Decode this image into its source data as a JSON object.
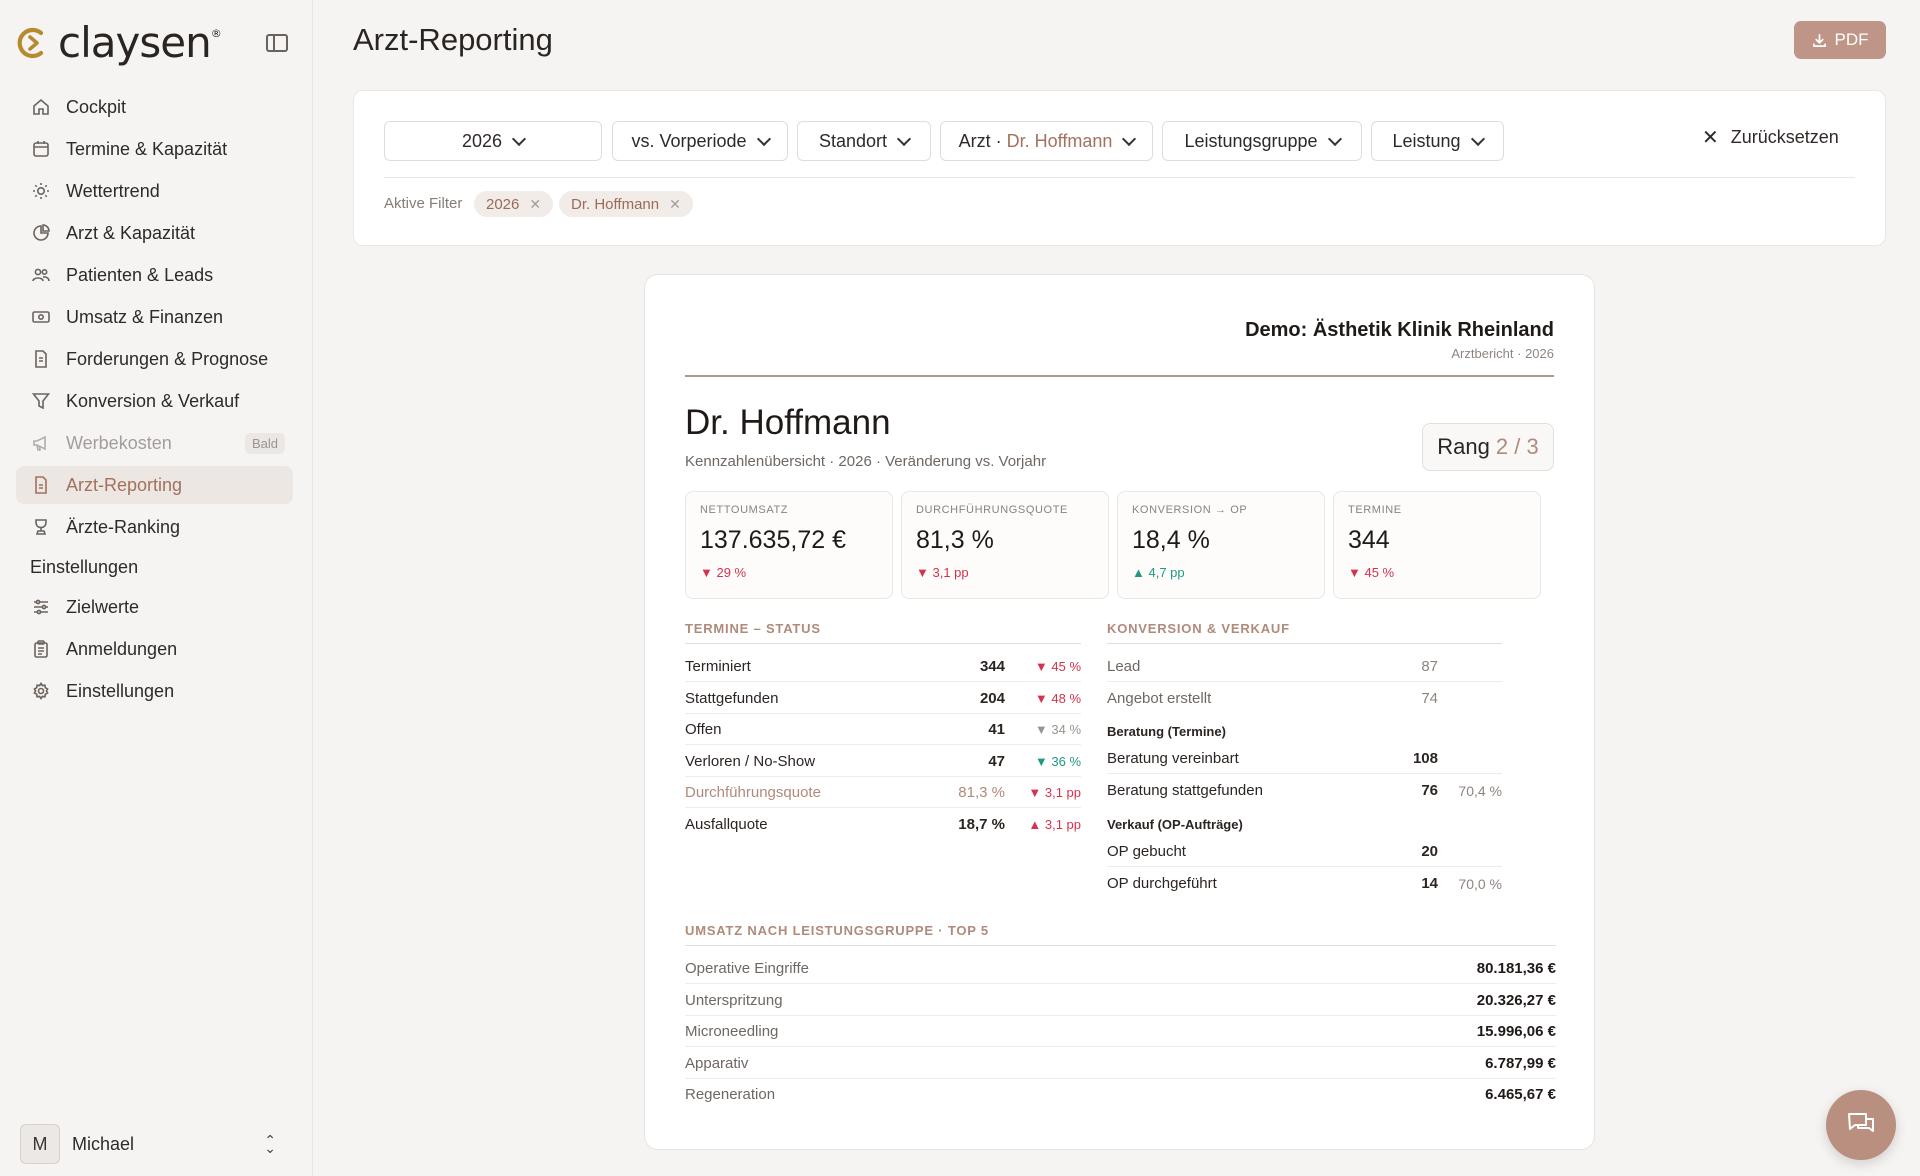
{
  "brand": {
    "name": "claysen",
    "mark": "®"
  },
  "sidebar": {
    "items": [
      {
        "label": "Cockpit",
        "icon": "home-icon"
      },
      {
        "label": "Termine & Kapazität",
        "icon": "calendar-icon"
      },
      {
        "label": "Wettertrend",
        "icon": "sun-icon"
      },
      {
        "label": "Arzt & Kapazität",
        "icon": "pie-chart-icon"
      },
      {
        "label": "Patienten & Leads",
        "icon": "users-icon"
      },
      {
        "label": "Umsatz & Finanzen",
        "icon": "banknote-icon"
      },
      {
        "label": "Forderungen & Prognose",
        "icon": "receipt-icon"
      },
      {
        "label": "Konversion & Verkauf",
        "icon": "funnel-icon"
      },
      {
        "label": "Werbekosten",
        "icon": "megaphone-icon",
        "badge": "Bald"
      },
      {
        "label": "Arzt-Reporting",
        "icon": "document-icon"
      },
      {
        "label": "Ärzte-Ranking",
        "icon": "trophy-icon"
      }
    ],
    "section": "Einstellungen",
    "settings_items": [
      {
        "label": "Zielwerte",
        "icon": "sliders-icon"
      },
      {
        "label": "Anmeldungen",
        "icon": "clipboard-icon"
      },
      {
        "label": "Einstellungen",
        "icon": "gear-icon"
      }
    ],
    "user": {
      "initial": "M",
      "name": "Michael"
    }
  },
  "header": {
    "title": "Arzt-Reporting",
    "pdf_label": "PDF"
  },
  "filters": {
    "year": "2026",
    "compare": "vs. Vorperiode",
    "location": "Standort",
    "doctor_prefix": "Arzt ·",
    "doctor_value": "Dr. Hoffmann",
    "service_group": "Leistungsgruppe",
    "service": "Leistung",
    "reset": "Zurücksetzen",
    "active_label": "Aktive Filter",
    "chips": [
      "2026",
      "Dr. Hoffmann"
    ]
  },
  "report": {
    "clinic": "Demo: Ästhetik Klinik Rheinland",
    "clinic_sub": "Arztbericht · 2026",
    "doctor": "Dr. Hoffmann",
    "doctor_sub": "Kennzahlenübersicht · 2026 · Veränderung vs. Vorjahr",
    "rank_label": "Rang",
    "rank_value": "2 / 3",
    "kpis": [
      {
        "label": "NETTOUMSATZ",
        "value": "137.635,72 €",
        "delta": "▼ 29 %",
        "dir": "down"
      },
      {
        "label": "DURCHFÜHRUNGSQUOTE",
        "value": "81,3 %",
        "delta": "▼ 3,1 pp",
        "dir": "down"
      },
      {
        "label": "KONVERSION → OP",
        "value": "18,4 %",
        "delta": "▲ 4,7 pp",
        "dir": "up"
      },
      {
        "label": "TERMINE",
        "value": "344",
        "delta": "▼ 45 %",
        "dir": "down"
      }
    ],
    "termine": {
      "title": "TERMINE – STATUS",
      "rows": [
        {
          "label": "Terminiert",
          "value": "344",
          "delta": "▼ 45 %",
          "dir": "down"
        },
        {
          "label": "Stattgefunden",
          "value": "204",
          "delta": "▼ 48 %",
          "dir": "down"
        },
        {
          "label": "Offen",
          "value": "41",
          "delta": "▼ 34 %",
          "dir": "neutral"
        },
        {
          "label": "Verloren / No-Show",
          "value": "47",
          "delta": "▼ 36 %",
          "dir": "up"
        },
        {
          "label": "Durchführungsquote",
          "value": "81,3 %",
          "delta": "▼ 3,1 pp",
          "dir": "down",
          "highlight": true
        },
        {
          "label": "Ausfallquote",
          "value": "18,7 %",
          "delta": "▲ 3,1 pp",
          "dir": "down"
        }
      ]
    },
    "konversion": {
      "title": "KONVERSION & VERKAUF",
      "rows_top": [
        {
          "label": "Lead",
          "value": "87"
        },
        {
          "label": "Angebot erstellt",
          "value": "74"
        }
      ],
      "beratung_title": "Beratung (Termine)",
      "beratung_rows": [
        {
          "label": "Beratung vereinbart",
          "value": "108",
          "pct": ""
        },
        {
          "label": "Beratung stattgefunden",
          "value": "76",
          "pct": "70,4 %"
        }
      ],
      "verkauf_title": "Verkauf (OP-Aufträge)",
      "verkauf_rows": [
        {
          "label": "OP gebucht",
          "value": "20",
          "pct": ""
        },
        {
          "label": "OP durchgeführt",
          "value": "14",
          "pct": "70,0 %"
        }
      ]
    },
    "umsatz": {
      "title": "UMSATZ NACH LEISTUNGSGRUPPE · TOP 5",
      "rows": [
        {
          "label": "Operative Eingriffe",
          "value": "80.181,36 €"
        },
        {
          "label": "Unterspritzung",
          "value": "20.326,27 €"
        },
        {
          "label": "Microneedling",
          "value": "15.996,06 €"
        },
        {
          "label": "Apparativ",
          "value": "6.787,99 €"
        },
        {
          "label": "Regeneration",
          "value": "6.465,67 €"
        }
      ]
    }
  },
  "colors": {
    "accent": "#a3715d",
    "accent_light": "#b08a7a",
    "button": "#be9587",
    "down": "#d5324e",
    "up": "#1f9a80"
  }
}
